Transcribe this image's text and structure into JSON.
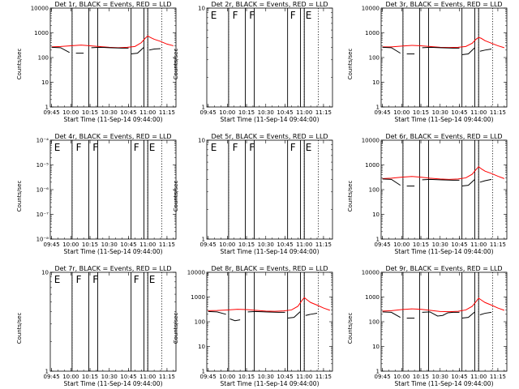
{
  "figure": {
    "colors": {
      "events": "#000000",
      "lld": "#ff0000"
    }
  },
  "chart_data": [
    {
      "type": "line",
      "panel": "det1",
      "title": "Det 1r, BLACK = Events, RED = LLD",
      "xlabel": "Start Time (11-Sep-14 09:44:00)",
      "ylabel": "Counts/sec",
      "yscale": "log",
      "ylim": [
        1,
        10000
      ],
      "yticks": [
        "1",
        "10",
        "100",
        "1000",
        "10000"
      ],
      "xticks": [
        "09:45",
        "10:00",
        "10:15",
        "10:30",
        "10:45",
        "11:00",
        "11:15"
      ],
      "flare_markers": [],
      "series": [
        {
          "role": "lld",
          "color": "#ff0000",
          "x": [
            "09:45",
            "09:52",
            "10:00",
            "10:08",
            "10:15",
            "10:22",
            "10:30",
            "10:37",
            "10:44",
            "10:50",
            "10:55",
            "10:58",
            "11:00",
            "11:02",
            "11:05",
            "11:10",
            "11:15",
            "11:20"
          ],
          "y": [
            270,
            280,
            300,
            320,
            300,
            280,
            260,
            250,
            260,
            280,
            400,
            600,
            750,
            650,
            550,
            450,
            350,
            300
          ]
        },
        {
          "role": "events",
          "color": "#000000",
          "x": [
            "09:45",
            "09:52",
            "09:59",
            "10:04",
            "10:10",
            "10:16",
            "10:22",
            "10:30",
            "10:40",
            "10:45",
            "10:47",
            "10:52",
            "10:57",
            "10:59",
            "11:01",
            "11:05",
            "11:10"
          ],
          "y": [
            260,
            250,
            160,
            150,
            150,
            250,
            260,
            250,
            240,
            240,
            140,
            150,
            260,
            140,
            200,
            220,
            230
          ],
          "segments": [
            [
              "09:45",
              "09:59"
            ],
            [
              "10:02",
              "10:13"
            ],
            [
              "10:16",
              "10:45"
            ],
            [
              "10:47",
              "10:57"
            ],
            [
              "11:01",
              "11:10"
            ]
          ]
        }
      ],
      "vlines_solid": [
        "10:01",
        "10:14",
        "10:21",
        "10:47",
        "10:57",
        "11:00"
      ],
      "vlines_dotted": [
        "10:01",
        "11:00",
        "11:11"
      ]
    },
    {
      "type": "line",
      "panel": "det2",
      "title": "Det 2r, BLACK = Events, RED = LLD",
      "xlabel": "Start Time (11-Sep-14 09:44:00)",
      "ylabel": "Counts/sec",
      "yscale": "log",
      "ylim": [
        1,
        10
      ],
      "yticks": [
        "1",
        "10"
      ],
      "xticks": [
        "09:45",
        "10:00",
        "10:15",
        "10:30",
        "10:45",
        "11:00",
        "11:15"
      ],
      "flare_markers": [
        {
          "x": "09:47",
          "label": "E"
        },
        {
          "x": "10:04",
          "label": "F"
        },
        {
          "x": "10:17",
          "label": "F"
        },
        {
          "x": "10:49",
          "label": "F"
        },
        {
          "x": "11:01",
          "label": "E"
        }
      ],
      "series": [],
      "vlines_solid": [
        "10:01",
        "10:14",
        "10:21",
        "10:47",
        "10:57",
        "11:00"
      ],
      "vlines_dotted": [
        "10:01",
        "11:00",
        "11:11"
      ]
    },
    {
      "type": "line",
      "panel": "det3",
      "title": "Det 3r, BLACK = Events, RED = LLD",
      "xlabel": "Start Time (11-Sep-14 09:44:00)",
      "ylabel": "Counts/sec",
      "yscale": "log",
      "ylim": [
        1,
        10000
      ],
      "yticks": [
        "1",
        "10",
        "100",
        "1000",
        "10000"
      ],
      "xticks": [
        "09:45",
        "10:00",
        "10:15",
        "10:30",
        "10:45",
        "11:00",
        "11:15"
      ],
      "flare_markers": [],
      "series": [
        {
          "role": "lld",
          "color": "#ff0000",
          "x": [
            "09:45",
            "09:52",
            "10:00",
            "10:08",
            "10:15",
            "10:22",
            "10:30",
            "10:37",
            "10:44",
            "10:50",
            "10:55",
            "10:58",
            "11:00",
            "11:02",
            "11:05",
            "11:10",
            "11:15",
            "11:20"
          ],
          "y": [
            270,
            270,
            290,
            310,
            300,
            280,
            260,
            255,
            260,
            280,
            380,
            550,
            650,
            600,
            480,
            380,
            300,
            250
          ]
        },
        {
          "role": "events",
          "color": "#000000",
          "x": [
            "09:45",
            "09:52",
            "09:59",
            "10:04",
            "10:10",
            "10:16",
            "10:22",
            "10:30",
            "10:40",
            "10:45",
            "10:47",
            "10:52",
            "10:57",
            "10:59",
            "11:01",
            "11:05",
            "11:10"
          ],
          "y": [
            260,
            250,
            150,
            140,
            140,
            250,
            260,
            250,
            240,
            240,
            130,
            140,
            250,
            130,
            180,
            200,
            220
          ],
          "segments": [
            [
              "09:45",
              "09:59"
            ],
            [
              "10:02",
              "10:13"
            ],
            [
              "10:16",
              "10:45"
            ],
            [
              "10:47",
              "10:57"
            ],
            [
              "11:01",
              "11:10"
            ]
          ]
        }
      ],
      "vlines_solid": [
        "10:01",
        "10:14",
        "10:21",
        "10:47",
        "10:57",
        "11:00"
      ],
      "vlines_dotted": [
        "10:01",
        "11:00",
        "11:11"
      ]
    },
    {
      "type": "line",
      "panel": "det4",
      "title": "Det 4r, BLACK = Events, RED = LLD",
      "xlabel": "Start Time (11-Sep-14 09:44:00)",
      "ylabel": "Counts/sec",
      "yscale": "log",
      "ylim": [
        1e-08,
        0.0001
      ],
      "yticks": [
        "10⁻⁸",
        "10⁻⁷",
        "10⁻⁶",
        "10⁻⁵",
        "10⁻⁴"
      ],
      "xticks": [
        "09:45",
        "10:00",
        "10:15",
        "10:30",
        "10:45",
        "11:00",
        "11:15"
      ],
      "flare_markers": [
        {
          "x": "09:47",
          "label": "E"
        },
        {
          "x": "10:04",
          "label": "F"
        },
        {
          "x": "10:17",
          "label": "F"
        },
        {
          "x": "10:49",
          "label": "F"
        },
        {
          "x": "11:01",
          "label": "E"
        }
      ],
      "series": [],
      "vlines_solid": [
        "10:01",
        "10:14",
        "10:21",
        "10:47",
        "10:57",
        "11:00"
      ],
      "vlines_dotted": [
        "10:01",
        "11:00",
        "11:11"
      ]
    },
    {
      "type": "line",
      "panel": "det5",
      "title": "Det 5r, BLACK = Events, RED = LLD",
      "xlabel": "Start Time (11-Sep-14 09:44:00)",
      "ylabel": "Counts/sec",
      "yscale": "log",
      "ylim": [
        1,
        10
      ],
      "yticks": [
        "1",
        "10"
      ],
      "xticks": [
        "09:45",
        "10:00",
        "10:15",
        "10:30",
        "10:45",
        "11:00",
        "11:15"
      ],
      "flare_markers": [
        {
          "x": "09:47",
          "label": "E"
        },
        {
          "x": "10:04",
          "label": "F"
        },
        {
          "x": "10:17",
          "label": "F"
        },
        {
          "x": "10:49",
          "label": "F"
        },
        {
          "x": "11:01",
          "label": "E"
        }
      ],
      "series": [],
      "vlines_solid": [
        "10:01",
        "10:14",
        "10:21",
        "10:47",
        "10:57",
        "11:00"
      ],
      "vlines_dotted": [
        "10:01",
        "11:00",
        "11:11"
      ]
    },
    {
      "type": "line",
      "panel": "det6",
      "title": "Det 6r, BLACK = Events, RED = LLD",
      "xlabel": "Start Time (11-Sep-14 09:44:00)",
      "ylabel": "Counts/sec",
      "yscale": "log",
      "ylim": [
        1,
        10000
      ],
      "yticks": [
        "1",
        "10",
        "100",
        "1000",
        "10000"
      ],
      "xticks": [
        "09:45",
        "10:00",
        "10:15",
        "10:30",
        "10:45",
        "11:00",
        "11:15"
      ],
      "flare_markers": [],
      "series": [
        {
          "role": "lld",
          "color": "#ff0000",
          "x": [
            "09:45",
            "09:52",
            "10:00",
            "10:08",
            "10:15",
            "10:22",
            "10:30",
            "10:37",
            "10:44",
            "10:50",
            "10:55",
            "10:58",
            "11:00",
            "11:02",
            "11:05",
            "11:10",
            "11:15",
            "11:20"
          ],
          "y": [
            280,
            290,
            320,
            340,
            320,
            290,
            270,
            260,
            270,
            300,
            420,
            650,
            850,
            700,
            560,
            450,
            350,
            280
          ]
        },
        {
          "role": "events",
          "color": "#000000",
          "x": [
            "09:45",
            "09:52",
            "09:59",
            "10:04",
            "10:10",
            "10:16",
            "10:22",
            "10:30",
            "10:40",
            "10:45",
            "10:47",
            "10:52",
            "10:57",
            "10:59",
            "11:01",
            "11:05",
            "11:10"
          ],
          "y": [
            270,
            260,
            150,
            140,
            140,
            250,
            260,
            250,
            240,
            240,
            140,
            150,
            260,
            140,
            200,
            230,
            260
          ],
          "segments": [
            [
              "09:45",
              "09:59"
            ],
            [
              "10:02",
              "10:13"
            ],
            [
              "10:16",
              "10:45"
            ],
            [
              "10:47",
              "10:57"
            ],
            [
              "11:01",
              "11:10"
            ]
          ]
        }
      ],
      "vlines_solid": [
        "10:01",
        "10:14",
        "10:21",
        "10:47",
        "10:57",
        "11:00"
      ],
      "vlines_dotted": [
        "10:01",
        "11:00",
        "11:11"
      ]
    },
    {
      "type": "line",
      "panel": "det7",
      "title": "Det 7r, BLACK = Events, RED = LLD",
      "xlabel": "Start Time (11-Sep-14 09:44:00)",
      "ylabel": "Counts/sec",
      "yscale": "log",
      "ylim": [
        1,
        10
      ],
      "yticks": [
        "1",
        "10"
      ],
      "xticks": [
        "09:45",
        "10:00",
        "10:15",
        "10:30",
        "10:45",
        "11:00",
        "11:15"
      ],
      "flare_markers": [
        {
          "x": "09:47",
          "label": "E"
        },
        {
          "x": "10:04",
          "label": "F"
        },
        {
          "x": "10:17",
          "label": "F"
        },
        {
          "x": "10:49",
          "label": "F"
        },
        {
          "x": "11:01",
          "label": "E"
        }
      ],
      "series": [],
      "vlines_solid": [
        "10:01",
        "10:14",
        "10:21",
        "10:47",
        "10:57",
        "11:00"
      ],
      "vlines_dotted": [
        "10:01",
        "11:00",
        "11:11"
      ]
    },
    {
      "type": "line",
      "panel": "det8",
      "title": "Det 8r, BLACK = Events, RED = LLD",
      "xlabel": "Start Time (11-Sep-14 09:44:00)",
      "ylabel": "Counts/sec",
      "yscale": "log",
      "ylim": [
        1,
        10000
      ],
      "yticks": [
        "1",
        "10",
        "100",
        "1000",
        "10000"
      ],
      "xticks": [
        "09:45",
        "10:00",
        "10:15",
        "10:30",
        "10:45",
        "11:00",
        "11:15"
      ],
      "flare_markers": [],
      "series": [
        {
          "role": "lld",
          "color": "#ff0000",
          "x": [
            "09:45",
            "09:52",
            "10:00",
            "10:08",
            "10:15",
            "10:22",
            "10:30",
            "10:37",
            "10:44",
            "10:50",
            "10:55",
            "10:58",
            "11:00",
            "11:02",
            "11:05",
            "11:10",
            "11:15",
            "11:20"
          ],
          "y": [
            280,
            285,
            300,
            320,
            310,
            290,
            270,
            265,
            275,
            300,
            420,
            700,
            950,
            780,
            600,
            470,
            360,
            290
          ]
        },
        {
          "role": "events",
          "color": "#000000",
          "x": [
            "09:45",
            "09:52",
            "09:59",
            "10:02",
            "10:06",
            "10:10",
            "10:16",
            "10:22",
            "10:30",
            "10:40",
            "10:45",
            "10:47",
            "10:52",
            "10:57",
            "10:59",
            "11:01",
            "11:05",
            "11:10"
          ],
          "y": [
            260,
            250,
            200,
            130,
            110,
            120,
            250,
            260,
            250,
            240,
            240,
            140,
            150,
            260,
            150,
            180,
            200,
            220
          ],
          "segments": [
            [
              "09:45",
              "09:59"
            ],
            [
              "10:02",
              "10:13"
            ],
            [
              "10:16",
              "10:45"
            ],
            [
              "10:47",
              "10:57"
            ],
            [
              "11:01",
              "11:10"
            ]
          ]
        }
      ],
      "vlines_solid": [
        "10:01",
        "10:14",
        "10:21",
        "10:47",
        "10:57",
        "11:00"
      ],
      "vlines_dotted": [
        "10:01",
        "11:00",
        "11:11"
      ]
    },
    {
      "type": "line",
      "panel": "det9",
      "title": "Det 9r, BLACK = Events, RED = LLD",
      "xlabel": "Start Time (11-Sep-14 09:44:00)",
      "ylabel": "Counts/sec",
      "yscale": "log",
      "ylim": [
        1,
        10000
      ],
      "yticks": [
        "1",
        "10",
        "100",
        "1000",
        "10000"
      ],
      "xticks": [
        "09:45",
        "10:00",
        "10:15",
        "10:30",
        "10:45",
        "11:00",
        "11:15"
      ],
      "flare_markers": [],
      "series": [
        {
          "role": "lld",
          "color": "#ff0000",
          "x": [
            "09:45",
            "09:52",
            "10:00",
            "10:08",
            "10:15",
            "10:22",
            "10:30",
            "10:37",
            "10:44",
            "10:50",
            "10:55",
            "10:58",
            "11:00",
            "11:02",
            "11:05",
            "11:10",
            "11:15",
            "11:20"
          ],
          "y": [
            270,
            280,
            310,
            330,
            320,
            290,
            260,
            255,
            265,
            300,
            420,
            650,
            900,
            760,
            600,
            470,
            360,
            290
          ]
        },
        {
          "role": "events",
          "color": "#000000",
          "x": [
            "09:45",
            "09:52",
            "09:59",
            "10:04",
            "10:10",
            "10:16",
            "10:22",
            "10:28",
            "10:32",
            "10:36",
            "10:40",
            "10:45",
            "10:47",
            "10:52",
            "10:57",
            "10:59",
            "11:01",
            "11:05",
            "11:10"
          ],
          "y": [
            250,
            240,
            150,
            140,
            140,
            240,
            250,
            170,
            180,
            230,
            240,
            240,
            140,
            150,
            250,
            140,
            190,
            220,
            240
          ],
          "segments": [
            [
              "09:45",
              "09:59"
            ],
            [
              "10:02",
              "10:13"
            ],
            [
              "10:16",
              "10:45"
            ],
            [
              "10:47",
              "10:57"
            ],
            [
              "11:01",
              "11:10"
            ]
          ]
        }
      ],
      "vlines_solid": [
        "10:01",
        "10:14",
        "10:21",
        "10:47",
        "10:57",
        "11:00"
      ],
      "vlines_dotted": [
        "10:01",
        "11:00",
        "11:11"
      ]
    }
  ]
}
